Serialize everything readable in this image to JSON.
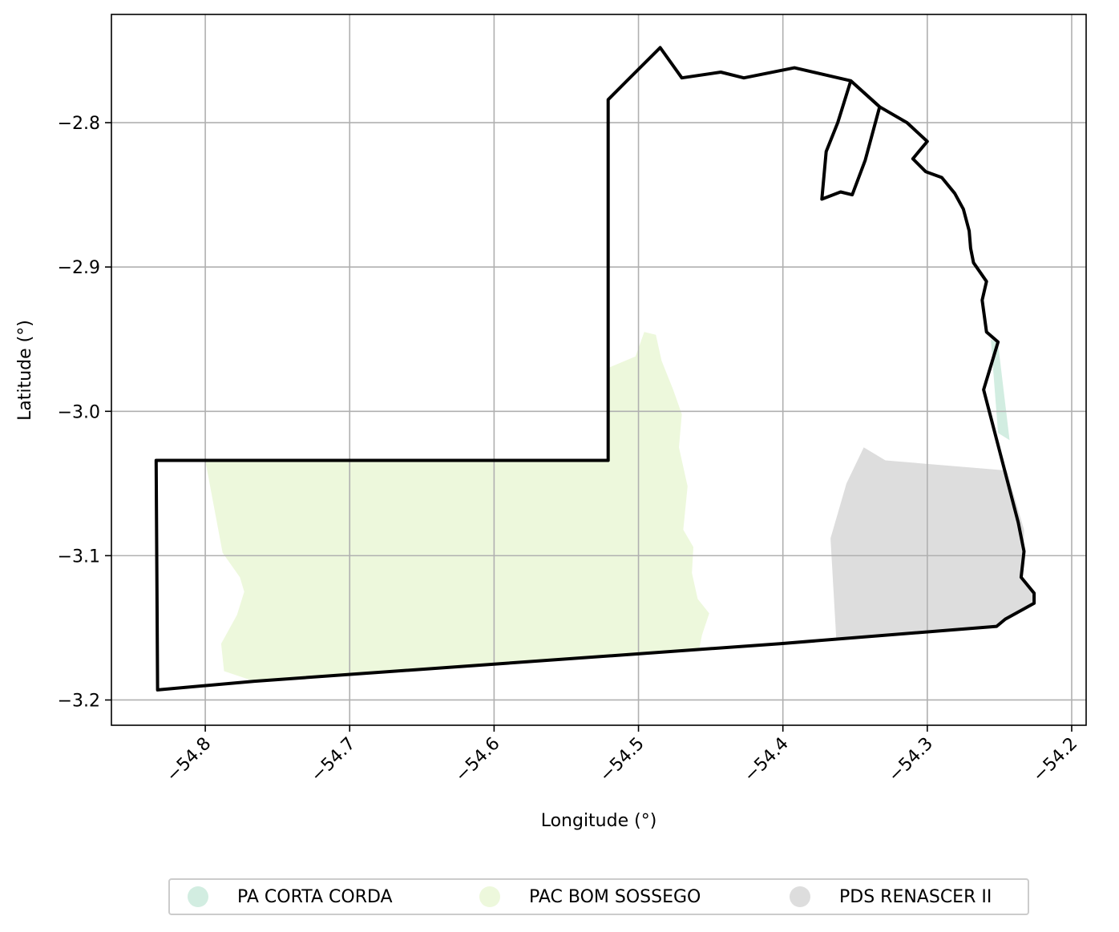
{
  "chart_data": {
    "type": "map",
    "xlabel": "Longitude (°)",
    "ylabel": "Latitude (°)",
    "xlim": [
      -54.865,
      -54.19
    ],
    "ylim": [
      -3.2175,
      -2.725
    ],
    "grid": true,
    "x_ticks": [
      -54.8,
      -54.7,
      -54.6,
      -54.5,
      -54.4,
      -54.3,
      -54.2
    ],
    "x_tick_labels": [
      "−54.8",
      "−54.7",
      "−54.6",
      "−54.5",
      "−54.4",
      "−54.3",
      "−54.2"
    ],
    "y_ticks": [
      -2.8,
      -2.9,
      -3.0,
      -3.1,
      -3.2
    ],
    "y_tick_labels": [
      "−2.8",
      "−2.9",
      "−3.0",
      "−3.1",
      "−3.2"
    ],
    "legend_position": "bottom-center",
    "boundary": {
      "color": "#000000",
      "coordinates": [
        [
          -54.834,
          -3.034
        ],
        [
          -54.521,
          -3.034
        ],
        [
          -54.521,
          -2.784
        ],
        [
          -54.507,
          -2.77
        ],
        [
          -54.485,
          -2.748
        ],
        [
          -54.47,
          -2.769
        ],
        [
          -54.443,
          -2.765
        ],
        [
          -54.427,
          -2.769
        ],
        [
          -54.392,
          -2.762
        ],
        [
          -54.353,
          -2.771
        ],
        [
          -54.333,
          -2.789
        ],
        [
          -54.314,
          -2.8
        ],
        [
          -54.3,
          -2.813
        ],
        [
          -54.31,
          -2.825
        ],
        [
          -54.301,
          -2.834
        ],
        [
          -54.29,
          -2.838
        ],
        [
          -54.281,
          -2.849
        ],
        [
          -54.275,
          -2.86
        ],
        [
          -54.271,
          -2.875
        ],
        [
          -54.27,
          -2.887
        ],
        [
          -54.268,
          -2.897
        ],
        [
          -54.259,
          -2.91
        ],
        [
          -54.262,
          -2.923
        ],
        [
          -54.259,
          -2.945
        ],
        [
          -54.251,
          -2.952
        ],
        [
          -54.261,
          -2.985
        ],
        [
          -54.237,
          -3.077
        ],
        [
          -54.233,
          -3.097
        ],
        [
          -54.235,
          -3.115
        ],
        [
          -54.226,
          -3.126
        ],
        [
          -54.226,
          -3.133
        ],
        [
          -54.246,
          -3.144
        ],
        [
          -54.252,
          -3.149
        ],
        [
          -54.402,
          -3.161
        ],
        [
          -54.598,
          -3.175
        ],
        [
          -54.766,
          -3.187
        ],
        [
          -54.833,
          -3.193
        ],
        [
          -54.834,
          -3.034
        ]
      ],
      "inner_strip": [
        [
          -54.353,
          -2.771
        ],
        [
          -54.362,
          -2.8
        ],
        [
          -54.37,
          -2.82
        ],
        [
          -54.373,
          -2.853
        ],
        [
          -54.36,
          -2.848
        ],
        [
          -54.352,
          -2.85
        ],
        [
          -54.343,
          -2.826
        ],
        [
          -54.333,
          -2.789
        ],
        [
          -54.353,
          -2.771
        ]
      ]
    },
    "series": [
      {
        "name": "PA CORTA CORDA",
        "color": "#d2ede1",
        "coordinates": [
          [
            -54.256,
            -2.95
          ],
          [
            -54.251,
            -2.953
          ],
          [
            -54.243,
            -3.02
          ],
          [
            -54.251,
            -3.015
          ],
          [
            -54.256,
            -2.95
          ]
        ]
      },
      {
        "name": "PAC BOM SOSSEGO",
        "color": "#edf8dc",
        "coordinates": [
          [
            -54.8,
            -3.034
          ],
          [
            -54.521,
            -3.034
          ],
          [
            -54.521,
            -2.97
          ],
          [
            -54.502,
            -2.962
          ],
          [
            -54.496,
            -2.945
          ],
          [
            -54.488,
            -2.947
          ],
          [
            -54.484,
            -2.965
          ],
          [
            -54.476,
            -2.985
          ],
          [
            -54.47,
            -3.002
          ],
          [
            -54.472,
            -3.025
          ],
          [
            -54.466,
            -3.052
          ],
          [
            -54.469,
            -3.082
          ],
          [
            -54.462,
            -3.094
          ],
          [
            -54.463,
            -3.112
          ],
          [
            -54.459,
            -3.13
          ],
          [
            -54.451,
            -3.14
          ],
          [
            -54.456,
            -3.155
          ],
          [
            -54.458,
            -3.165
          ],
          [
            -54.598,
            -3.175
          ],
          [
            -54.766,
            -3.187
          ],
          [
            -54.787,
            -3.18
          ],
          [
            -54.789,
            -3.161
          ],
          [
            -54.778,
            -3.141
          ],
          [
            -54.773,
            -3.125
          ],
          [
            -54.776,
            -3.115
          ],
          [
            -54.788,
            -3.098
          ],
          [
            -54.8,
            -3.034
          ]
        ]
      },
      {
        "name": "PDS RENASCER II",
        "color": "#dddddd",
        "coordinates": [
          [
            -54.367,
            -3.088
          ],
          [
            -54.356,
            -3.05
          ],
          [
            -54.344,
            -3.025
          ],
          [
            -54.329,
            -3.034
          ],
          [
            -54.245,
            -3.041
          ],
          [
            -54.233,
            -3.082
          ],
          [
            -54.233,
            -3.097
          ],
          [
            -54.235,
            -3.115
          ],
          [
            -54.226,
            -3.126
          ],
          [
            -54.226,
            -3.133
          ],
          [
            -54.246,
            -3.144
          ],
          [
            -54.252,
            -3.149
          ],
          [
            -54.363,
            -3.158
          ],
          [
            -54.367,
            -3.088
          ]
        ]
      }
    ]
  }
}
